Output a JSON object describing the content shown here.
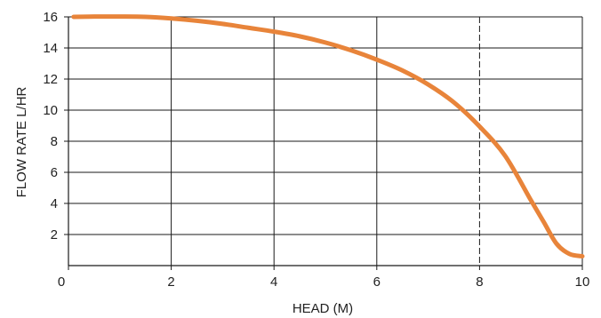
{
  "chart_data": {
    "type": "line",
    "title": "",
    "xlabel": "HEAD (M)",
    "ylabel": "FLOW RATE L/HR",
    "xlim": [
      0,
      10
    ],
    "ylim": [
      0,
      16
    ],
    "x_ticks": [
      0,
      2,
      4,
      6,
      8,
      10
    ],
    "y_ticks": [
      2,
      4,
      6,
      8,
      10,
      12,
      14,
      16
    ],
    "grid": true,
    "dashed_reference_x": 8,
    "series": [
      {
        "color": "#e8843a",
        "x": [
          0.1,
          0.5,
          1,
          1.5,
          2,
          2.5,
          3,
          3.5,
          4,
          4.5,
          5,
          5.5,
          6,
          6.5,
          7,
          7.5,
          8,
          8.5,
          9,
          9.25,
          9.5,
          9.75,
          10
        ],
        "y": [
          16.0,
          16.02,
          16.02,
          16.0,
          15.9,
          15.75,
          15.55,
          15.3,
          15.05,
          14.75,
          14.35,
          13.85,
          13.25,
          12.55,
          11.65,
          10.5,
          8.95,
          7.05,
          4.2,
          2.8,
          1.4,
          0.75,
          0.6
        ]
      }
    ]
  }
}
